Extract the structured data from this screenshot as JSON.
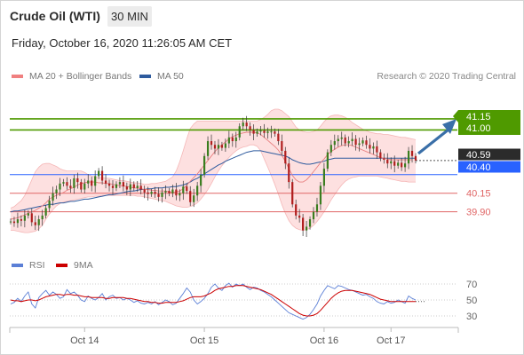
{
  "header": {
    "instrument": "Crude Oil (WTI)",
    "timeframe": "30 MIN",
    "datetime": "Friday, October 16, 2020 11:26:05 AM CET"
  },
  "legend": {
    "bollinger": {
      "label": "MA 20 + Bollinger Bands",
      "color": "#f08080"
    },
    "ma50": {
      "label": "MA 50",
      "color": "#2e5b9e"
    },
    "rsi": {
      "label": "RSI",
      "color": "#5b7fd6"
    },
    "rsi_ma": {
      "label": "9MA",
      "color": "#cc0000"
    }
  },
  "copyright": "Research © 2020 Trading Central",
  "chart_data": [
    {
      "type": "candlestick",
      "x_labels": [
        "Oct 14",
        "Oct 15",
        "Oct 16",
        "Oct 17"
      ],
      "ylim": [
        39.55,
        41.28
      ],
      "levels": [
        {
          "label": "41.15",
          "value": 41.15,
          "color": "#4f9a00",
          "style": "resistance"
        },
        {
          "label": "41.00",
          "value": 41.0,
          "color": "#4f9a00",
          "style": "resistance"
        },
        {
          "label": "40.59",
          "value": 40.59,
          "color": "#2b2b2b",
          "style": "last"
        },
        {
          "label": "40.40",
          "value": 40.4,
          "color": "#2962ff",
          "style": "pivot"
        },
        {
          "label": "40.15",
          "value": 40.15,
          "color": "#e06666",
          "style": "support"
        },
        {
          "label": "39.90",
          "value": 39.9,
          "color": "#e06666",
          "style": "support"
        }
      ],
      "close": [
        39.77,
        39.75,
        39.8,
        39.78,
        39.85,
        39.88,
        39.76,
        39.72,
        39.8,
        39.85,
        39.95,
        40.05,
        40.15,
        40.2,
        40.28,
        40.3,
        40.25,
        40.22,
        40.35,
        40.3,
        40.2,
        40.28,
        40.32,
        40.25,
        40.38,
        40.45,
        40.32,
        40.28,
        40.25,
        40.22,
        40.27,
        40.3,
        40.24,
        40.2,
        40.27,
        40.22,
        40.25,
        40.2,
        40.16,
        40.14,
        40.17,
        40.14,
        40.1,
        40.16,
        40.18,
        40.15,
        40.2,
        40.12,
        40.15,
        40.24,
        40.18,
        40.03,
        40.12,
        40.25,
        40.4,
        40.65,
        40.85,
        40.8,
        40.75,
        40.8,
        40.76,
        40.82,
        40.9,
        40.85,
        40.9,
        41.05,
        41.1,
        41.05,
        41.0,
        40.95,
        40.98,
        40.99,
        40.96,
        40.98,
        40.98,
        40.95,
        40.85,
        40.72,
        40.55,
        40.3,
        40.0,
        39.85,
        39.82,
        39.65,
        39.7,
        39.8,
        39.9,
        40.0,
        40.25,
        40.48,
        40.7,
        40.8,
        40.85,
        40.88,
        40.9,
        40.82,
        40.85,
        40.88,
        40.8,
        40.82,
        40.86,
        40.8,
        40.75,
        40.78,
        40.7,
        40.62,
        40.6,
        40.55,
        40.58,
        40.52,
        40.56,
        40.5,
        40.55,
        40.72,
        40.65,
        40.59
      ],
      "ma20": [
        39.8,
        39.81,
        39.82,
        39.84,
        39.86,
        39.88,
        39.9,
        39.92,
        39.95,
        39.98,
        40.02,
        40.07,
        40.1,
        40.12,
        40.14,
        40.16,
        40.19,
        40.21,
        40.23,
        40.26,
        40.28,
        40.29,
        40.3,
        40.3,
        40.3,
        40.29,
        40.29,
        40.28,
        40.28,
        40.27,
        40.26,
        40.25,
        40.25,
        40.24,
        40.23,
        40.22,
        40.22,
        40.21,
        40.2,
        40.2,
        40.19,
        40.19,
        40.18,
        40.18,
        40.18,
        40.17,
        40.16,
        40.17,
        40.18,
        40.21,
        40.26,
        40.31,
        40.36,
        40.41,
        40.47,
        40.53,
        40.59,
        40.65,
        40.71,
        40.76,
        40.8,
        40.84,
        40.88,
        40.91,
        40.93,
        40.95,
        40.96,
        40.97,
        40.97,
        40.97,
        40.96,
        40.94,
        40.9,
        40.86,
        40.82,
        40.78,
        40.73,
        40.66,
        40.58,
        40.48,
        40.39,
        40.33,
        40.3,
        40.3,
        40.33,
        40.38,
        40.44,
        40.5,
        40.56,
        40.61,
        40.67,
        40.71,
        40.74,
        40.77,
        40.79,
        40.8,
        40.8,
        40.79,
        40.77,
        40.75,
        40.73,
        40.71,
        40.69,
        40.67,
        40.65,
        40.63,
        40.62,
        40.61,
        40.6,
        40.6,
        40.6,
        40.6,
        40.6,
        40.6,
        40.6
      ],
      "upper_band": [
        39.95,
        39.97,
        40.01,
        40.05,
        40.12,
        40.22,
        40.33,
        40.44,
        40.5,
        40.54,
        40.55,
        40.55,
        40.53,
        40.51,
        40.48,
        40.46,
        40.45,
        40.45,
        40.45,
        40.45,
        40.45,
        40.43,
        40.4,
        40.38,
        40.37,
        40.36,
        40.36,
        40.35,
        40.35,
        40.34,
        40.33,
        40.32,
        40.32,
        40.31,
        40.3,
        40.29,
        40.29,
        40.28,
        40.27,
        40.27,
        40.28,
        40.28,
        40.29,
        40.3,
        40.31,
        40.34,
        40.37,
        40.45,
        40.57,
        40.72,
        40.88,
        41.02,
        41.08,
        41.12,
        41.12,
        41.12,
        41.12,
        41.12,
        41.12,
        41.12,
        41.12,
        41.12,
        41.12,
        41.12,
        41.12,
        41.12,
        41.12,
        41.12,
        41.12,
        41.12,
        41.12,
        41.14,
        41.17,
        41.21,
        41.26,
        41.28,
        41.28,
        41.26,
        41.22,
        41.18,
        41.11,
        41.04,
        41.0,
        40.98,
        40.97,
        40.97,
        40.98,
        41.0,
        41.05,
        41.11,
        41.16,
        41.19,
        41.2,
        41.2,
        41.19,
        41.17,
        41.14,
        41.1,
        41.07,
        41.04,
        41.01,
        40.99,
        40.97,
        40.96,
        40.95,
        40.95,
        40.94,
        40.94,
        40.93,
        40.92,
        40.91,
        40.9,
        40.9,
        40.89,
        40.88,
        40.87
      ],
      "lower_band": [
        39.65,
        39.65,
        39.64,
        39.63,
        39.62,
        39.62,
        39.63,
        39.64,
        39.67,
        39.72,
        39.8,
        39.87,
        39.93,
        39.98,
        40.01,
        40.03,
        40.04,
        40.05,
        40.06,
        40.07,
        40.08,
        40.09,
        40.1,
        40.1,
        40.11,
        40.11,
        40.12,
        40.12,
        40.12,
        40.12,
        40.12,
        40.12,
        40.12,
        40.12,
        40.12,
        40.12,
        40.11,
        40.11,
        40.1,
        40.09,
        40.08,
        40.07,
        40.06,
        40.05,
        40.04,
        40.02,
        40.0,
        39.98,
        39.97,
        39.96,
        39.96,
        39.97,
        39.99,
        40.02,
        40.07,
        40.13,
        40.2,
        40.28,
        40.37,
        40.45,
        40.52,
        40.58,
        40.63,
        40.68,
        40.72,
        40.75,
        40.77,
        40.78,
        40.8,
        40.8,
        40.78,
        40.72,
        40.61,
        40.5,
        40.39,
        40.27,
        40.14,
        40.0,
        39.88,
        39.78,
        39.72,
        39.68,
        39.66,
        39.65,
        39.66,
        39.68,
        39.72,
        39.77,
        39.83,
        39.9,
        39.98,
        40.06,
        40.13,
        40.2,
        40.26,
        40.31,
        40.34,
        40.36,
        40.37,
        40.38,
        40.38,
        40.38,
        40.38,
        40.38,
        40.38,
        40.37,
        40.36,
        40.35,
        40.34,
        40.33,
        40.32,
        40.31,
        40.31,
        40.3,
        40.3,
        40.3
      ],
      "ma50": [
        39.9,
        39.91,
        39.91,
        39.92,
        39.93,
        39.94,
        39.95,
        39.96,
        39.97,
        39.98,
        39.99,
        40.0,
        40.0,
        40.01,
        40.02,
        40.02,
        40.03,
        40.04,
        40.04,
        40.05,
        40.06,
        40.07,
        40.07,
        40.08,
        40.09,
        40.1,
        40.11,
        40.12,
        40.13,
        40.13,
        40.14,
        40.15,
        40.16,
        40.17,
        40.18,
        40.18,
        40.19,
        40.2,
        40.2,
        40.21,
        40.21,
        40.22,
        40.22,
        40.22,
        40.23,
        40.23,
        40.24,
        40.24,
        40.25,
        40.26,
        40.28,
        40.3,
        40.33,
        40.35,
        40.38,
        40.41,
        40.44,
        40.47,
        40.5,
        40.53,
        40.55,
        40.58,
        40.6,
        40.62,
        40.64,
        40.66,
        40.68,
        40.7,
        40.71,
        40.72,
        40.72,
        40.72,
        40.71,
        40.7,
        40.69,
        40.68,
        40.67,
        40.66,
        40.65,
        40.63,
        40.6,
        40.58,
        40.56,
        40.55,
        40.54,
        40.54,
        40.55,
        40.56,
        40.57,
        40.58,
        40.6,
        40.61,
        40.62,
        40.62,
        40.62,
        40.62,
        40.62,
        40.62,
        40.62,
        40.62,
        40.62,
        40.62,
        40.62,
        40.62,
        40.62,
        40.62,
        40.62,
        40.62,
        40.62,
        40.62,
        40.62,
        40.62,
        40.62,
        40.62,
        40.62,
        40.62
      ]
    },
    {
      "type": "line",
      "indicator": "RSI",
      "ylim": [
        20,
        80
      ],
      "y_ticks": [
        70,
        50,
        30
      ],
      "x_labels": [
        "Oct 14",
        "Oct 15",
        "Oct 16",
        "Oct 17"
      ],
      "series": [
        {
          "name": "RSI",
          "values": [
            45,
            47,
            52,
            48,
            55,
            60,
            45,
            40,
            53,
            58,
            62,
            56,
            60,
            57,
            52,
            54,
            63,
            58,
            60,
            56,
            50,
            48,
            55,
            52,
            50,
            53,
            58,
            50,
            54,
            56,
            52,
            53,
            50,
            52,
            50,
            47,
            49,
            46,
            45,
            47,
            45,
            48,
            44,
            47,
            50,
            48,
            44,
            46,
            52,
            58,
            65,
            60,
            50,
            45,
            48,
            52,
            58,
            66,
            70,
            65,
            62,
            68,
            71,
            66,
            70,
            68,
            70,
            66,
            63,
            66,
            65,
            62,
            60,
            57,
            54,
            50,
            46,
            42,
            38,
            34,
            32,
            30,
            28,
            26,
            28,
            32,
            38,
            45,
            55,
            62,
            68,
            66,
            64,
            68,
            67,
            65,
            63,
            62,
            60,
            58,
            56,
            57,
            54,
            52,
            48,
            46,
            45,
            48,
            46,
            47,
            50,
            48,
            46,
            55,
            52,
            50
          ]
        },
        {
          "name": "9MA",
          "values": [
            50,
            49,
            49,
            48,
            49,
            50,
            50,
            49,
            50,
            52,
            54,
            55,
            56,
            57,
            57,
            56,
            57,
            57,
            56,
            56,
            55,
            54,
            54,
            53,
            53,
            53,
            53,
            52,
            52,
            53,
            53,
            53,
            53,
            52,
            52,
            51,
            50,
            49,
            48,
            48,
            47,
            47,
            46,
            46,
            47,
            47,
            47,
            47,
            48,
            49,
            51,
            53,
            54,
            54,
            54,
            55,
            57,
            59,
            62,
            64,
            65,
            66,
            67,
            67,
            68,
            68,
            68,
            67,
            66,
            65,
            64,
            63,
            61,
            59,
            57,
            54,
            51,
            48,
            45,
            42,
            39,
            36,
            33,
            31,
            30,
            30,
            31,
            33,
            37,
            42,
            47,
            52,
            56,
            59,
            61,
            62,
            62,
            62,
            61,
            60,
            59,
            58,
            57,
            55,
            53,
            51,
            50,
            49,
            48,
            48,
            48,
            48,
            48,
            48,
            48,
            48
          ]
        }
      ]
    }
  ]
}
